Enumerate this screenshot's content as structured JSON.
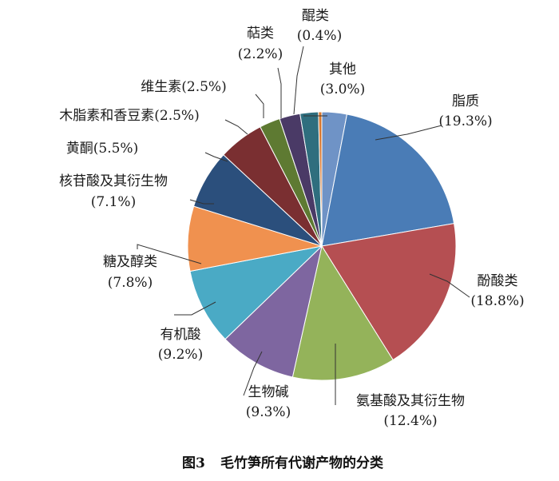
{
  "chart_data": {
    "type": "pie",
    "caption_number": "图3",
    "caption_text": "毛竹笋所有代谢产物的分类",
    "start": "12 o'clock, clockwise",
    "slices": [
      {
        "name": "其他",
        "value": 3.0,
        "pct": "(3.0%)",
        "color": "#6f93c6"
      },
      {
        "name": "脂质",
        "value": 19.3,
        "pct": "(19.3%)",
        "color": "#4a7cb6"
      },
      {
        "name": "酚酸类",
        "value": 18.8,
        "pct": "(18.8%)",
        "color": "#b54f52"
      },
      {
        "name": "氨基酸及其衍生物",
        "value": 12.4,
        "pct": "(12.4%)",
        "color": "#94b35a"
      },
      {
        "name": "生物碱",
        "value": 9.3,
        "pct": "(9.3%)",
        "color": "#7e66a0"
      },
      {
        "name": "有机酸",
        "value": 9.2,
        "pct": "(9.2%)",
        "color": "#4aaac5"
      },
      {
        "name": "糖及醇类",
        "value": 7.8,
        "pct": "(7.8%)",
        "color": "#f0914f"
      },
      {
        "name": "核苷酸及其衍生物",
        "value": 7.1,
        "pct": "(7.1%)",
        "color": "#2b4f7c"
      },
      {
        "name": "黄酮",
        "value": 5.5,
        "pct": "(5.5%)",
        "color": "#7a2f31"
      },
      {
        "name": "木脂素和香豆素",
        "value": 2.5,
        "pct": "(2.5%)",
        "color": "#5e7a32"
      },
      {
        "name": "维生素",
        "value": 2.5,
        "pct": "(2.5%)",
        "color": "#4a3a66"
      },
      {
        "name": "萜类",
        "value": 2.2,
        "pct": "(2.2%)",
        "color": "#2f6e7e"
      },
      {
        "name": "醌类",
        "value": 0.4,
        "pct": "(0.4%)",
        "color": "#d9782f"
      }
    ]
  }
}
